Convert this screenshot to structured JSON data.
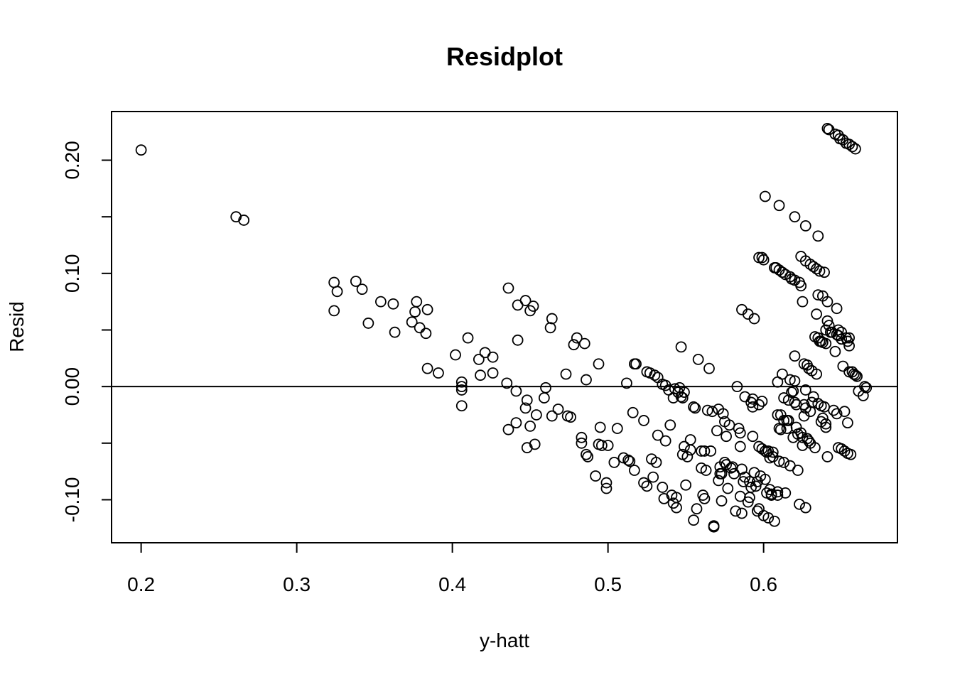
{
  "chart_data": {
    "type": "scatter",
    "title": "Residplot",
    "xlabel": "y-hatt",
    "ylabel": "Resid",
    "xlim": [
      0.181,
      0.686
    ],
    "ylim": [
      -0.138,
      0.243
    ],
    "xticks": [
      0.2,
      0.3,
      0.4,
      0.5,
      0.6
    ],
    "xtick_labels": [
      "0.2",
      "0.3",
      "0.4",
      "0.5",
      "0.6"
    ],
    "yticks": [
      -0.1,
      -0.05,
      0.0,
      0.05,
      0.1,
      0.15,
      0.2
    ],
    "ytick_labels": [
      "-0.10",
      "",
      "0.00",
      "",
      "0.10",
      "",
      "0.20"
    ],
    "hline": 0.0,
    "grid": false,
    "marker": "open-circle",
    "points": [
      [
        0.2,
        0.209
      ],
      [
        0.261,
        0.15
      ],
      [
        0.266,
        0.147
      ],
      [
        0.324,
        0.092
      ],
      [
        0.326,
        0.084
      ],
      [
        0.324,
        0.067
      ],
      [
        0.338,
        0.093
      ],
      [
        0.342,
        0.086
      ],
      [
        0.346,
        0.056
      ],
      [
        0.354,
        0.075
      ],
      [
        0.362,
        0.073
      ],
      [
        0.363,
        0.048
      ],
      [
        0.374,
        0.057
      ],
      [
        0.376,
        0.066
      ],
      [
        0.377,
        0.075
      ],
      [
        0.379,
        0.052
      ],
      [
        0.383,
        0.047
      ],
      [
        0.384,
        0.068
      ],
      [
        0.384,
        0.016
      ],
      [
        0.391,
        0.012
      ],
      [
        0.402,
        0.028
      ],
      [
        0.406,
        0.004
      ],
      [
        0.406,
        0.0
      ],
      [
        0.406,
        -0.003
      ],
      [
        0.406,
        -0.017
      ],
      [
        0.41,
        0.043
      ],
      [
        0.417,
        0.024
      ],
      [
        0.418,
        0.01
      ],
      [
        0.421,
        0.03
      ],
      [
        0.426,
        0.026
      ],
      [
        0.426,
        0.012
      ],
      [
        0.435,
        0.003
      ],
      [
        0.436,
        -0.038
      ],
      [
        0.436,
        0.087
      ],
      [
        0.441,
        -0.032
      ],
      [
        0.441,
        -0.004
      ],
      [
        0.442,
        0.072
      ],
      [
        0.442,
        0.041
      ],
      [
        0.447,
        0.076
      ],
      [
        0.447,
        -0.019
      ],
      [
        0.448,
        -0.054
      ],
      [
        0.448,
        -0.012
      ],
      [
        0.45,
        -0.035
      ],
      [
        0.45,
        0.067
      ],
      [
        0.452,
        0.071
      ],
      [
        0.453,
        -0.051
      ],
      [
        0.454,
        -0.025
      ],
      [
        0.459,
        -0.01
      ],
      [
        0.46,
        -0.001
      ],
      [
        0.463,
        0.052
      ],
      [
        0.464,
        0.06
      ],
      [
        0.464,
        -0.026
      ],
      [
        0.468,
        -0.02
      ],
      [
        0.473,
        0.011
      ],
      [
        0.474,
        -0.026
      ],
      [
        0.476,
        -0.027
      ],
      [
        0.478,
        0.037
      ],
      [
        0.48,
        0.043
      ],
      [
        0.483,
        -0.045
      ],
      [
        0.483,
        -0.05
      ],
      [
        0.485,
        0.038
      ],
      [
        0.486,
        0.006
      ],
      [
        0.486,
        -0.06
      ],
      [
        0.487,
        -0.062
      ],
      [
        0.492,
        -0.079
      ],
      [
        0.494,
        -0.051
      ],
      [
        0.494,
        0.02
      ],
      [
        0.495,
        -0.036
      ],
      [
        0.496,
        -0.052
      ],
      [
        0.499,
        -0.085
      ],
      [
        0.499,
        -0.09
      ],
      [
        0.5,
        -0.052
      ],
      [
        0.504,
        -0.067
      ],
      [
        0.506,
        -0.037
      ],
      [
        0.51,
        -0.063
      ],
      [
        0.512,
        0.003
      ],
      [
        0.513,
        -0.065
      ],
      [
        0.514,
        -0.066
      ],
      [
        0.516,
        -0.023
      ],
      [
        0.517,
        0.02
      ],
      [
        0.517,
        -0.074
      ],
      [
        0.518,
        0.02
      ],
      [
        0.523,
        -0.03
      ],
      [
        0.523,
        -0.085
      ],
      [
        0.525,
        -0.088
      ],
      [
        0.525,
        0.013
      ],
      [
        0.527,
        0.012
      ],
      [
        0.528,
        -0.064
      ],
      [
        0.529,
        -0.08
      ],
      [
        0.53,
        0.01
      ],
      [
        0.531,
        -0.067
      ],
      [
        0.532,
        -0.043
      ],
      [
        0.532,
        0.008
      ],
      [
        0.535,
        0.002
      ],
      [
        0.535,
        -0.089
      ],
      [
        0.536,
        -0.099
      ],
      [
        0.537,
        -0.048
      ],
      [
        0.537,
        0.001
      ],
      [
        0.539,
        -0.003
      ],
      [
        0.54,
        -0.034
      ],
      [
        0.541,
        -0.096
      ],
      [
        0.542,
        -0.01
      ],
      [
        0.542,
        -0.103
      ],
      [
        0.543,
        -0.002
      ],
      [
        0.544,
        -0.107
      ],
      [
        0.544,
        -0.098
      ],
      [
        0.545,
        -0.005
      ],
      [
        0.546,
        -0.001
      ],
      [
        0.547,
        -0.009
      ],
      [
        0.547,
        0.035
      ],
      [
        0.548,
        -0.01
      ],
      [
        0.548,
        -0.06
      ],
      [
        0.549,
        -0.053
      ],
      [
        0.549,
        -0.005
      ],
      [
        0.55,
        -0.087
      ],
      [
        0.551,
        -0.062
      ],
      [
        0.553,
        -0.047
      ],
      [
        0.553,
        -0.056
      ],
      [
        0.555,
        -0.018
      ],
      [
        0.555,
        -0.118
      ],
      [
        0.556,
        -0.019
      ],
      [
        0.557,
        -0.108
      ],
      [
        0.558,
        0.024
      ],
      [
        0.56,
        -0.057
      ],
      [
        0.56,
        -0.072
      ],
      [
        0.561,
        -0.096
      ],
      [
        0.562,
        -0.057
      ],
      [
        0.562,
        -0.099
      ],
      [
        0.563,
        -0.074
      ],
      [
        0.564,
        -0.021
      ],
      [
        0.565,
        0.016
      ],
      [
        0.566,
        -0.057
      ],
      [
        0.567,
        -0.022
      ],
      [
        0.568,
        -0.123
      ],
      [
        0.568,
        -0.124
      ],
      [
        0.57,
        -0.039
      ],
      [
        0.571,
        -0.02
      ],
      [
        0.571,
        -0.083
      ],
      [
        0.572,
        -0.071
      ],
      [
        0.572,
        -0.077
      ],
      [
        0.573,
        -0.077
      ],
      [
        0.573,
        -0.101
      ],
      [
        0.574,
        -0.024
      ],
      [
        0.575,
        -0.067
      ],
      [
        0.575,
        -0.031
      ],
      [
        0.576,
        -0.044
      ],
      [
        0.576,
        -0.069
      ],
      [
        0.577,
        -0.09
      ],
      [
        0.578,
        -0.034
      ],
      [
        0.579,
        -0.072
      ],
      [
        0.58,
        -0.071
      ],
      [
        0.581,
        -0.077
      ],
      [
        0.582,
        -0.11
      ],
      [
        0.583,
        0.0
      ],
      [
        0.584,
        -0.037
      ],
      [
        0.585,
        -0.053
      ],
      [
        0.585,
        -0.041
      ],
      [
        0.585,
        -0.097
      ],
      [
        0.586,
        0.068
      ],
      [
        0.586,
        -0.112
      ],
      [
        0.586,
        -0.073
      ],
      [
        0.587,
        -0.084
      ],
      [
        0.588,
        -0.009
      ],
      [
        0.588,
        -0.08
      ],
      [
        0.59,
        -0.102
      ],
      [
        0.59,
        0.064
      ],
      [
        0.591,
        -0.084
      ],
      [
        0.591,
        -0.098
      ],
      [
        0.592,
        -0.014
      ],
      [
        0.592,
        -0.089
      ],
      [
        0.593,
        -0.044
      ],
      [
        0.593,
        -0.011
      ],
      [
        0.593,
        -0.018
      ],
      [
        0.594,
        0.06
      ],
      [
        0.594,
        -0.076
      ],
      [
        0.595,
        -0.088
      ],
      [
        0.596,
        -0.084
      ],
      [
        0.596,
        -0.11
      ],
      [
        0.597,
        -0.053
      ],
      [
        0.597,
        -0.016
      ],
      [
        0.597,
        -0.108
      ],
      [
        0.597,
        0.114
      ],
      [
        0.598,
        -0.079
      ],
      [
        0.599,
        -0.013
      ],
      [
        0.599,
        0.114
      ],
      [
        0.599,
        -0.055
      ],
      [
        0.6,
        0.112
      ],
      [
        0.6,
        -0.114
      ],
      [
        0.601,
        0.168
      ],
      [
        0.601,
        -0.082
      ],
      [
        0.601,
        -0.057
      ],
      [
        0.602,
        -0.094
      ],
      [
        0.602,
        -0.058
      ],
      [
        0.603,
        -0.116
      ],
      [
        0.603,
        -0.057
      ],
      [
        0.604,
        -0.063
      ],
      [
        0.604,
        -0.091
      ],
      [
        0.605,
        -0.096
      ],
      [
        0.605,
        -0.095
      ],
      [
        0.606,
        -0.058
      ],
      [
        0.606,
        -0.062
      ],
      [
        0.607,
        0.105
      ],
      [
        0.607,
        -0.119
      ],
      [
        0.608,
        0.105
      ],
      [
        0.609,
        -0.093
      ],
      [
        0.609,
        -0.096
      ],
      [
        0.609,
        -0.025
      ],
      [
        0.609,
        0.004
      ],
      [
        0.61,
        -0.066
      ],
      [
        0.61,
        0.16
      ],
      [
        0.61,
        0.103
      ],
      [
        0.61,
        -0.037
      ],
      [
        0.611,
        -0.038
      ],
      [
        0.611,
        -0.025
      ],
      [
        0.612,
        0.011
      ],
      [
        0.612,
        0.101
      ],
      [
        0.613,
        -0.03
      ],
      [
        0.613,
        -0.067
      ],
      [
        0.613,
        -0.01
      ],
      [
        0.614,
        -0.094
      ],
      [
        0.614,
        0.099
      ],
      [
        0.615,
        -0.03
      ],
      [
        0.615,
        -0.037
      ],
      [
        0.616,
        -0.03
      ],
      [
        0.616,
        -0.012
      ],
      [
        0.617,
        0.097
      ],
      [
        0.617,
        0.006
      ],
      [
        0.617,
        -0.07
      ],
      [
        0.618,
        -0.005
      ],
      [
        0.618,
        0.095
      ],
      [
        0.619,
        -0.004
      ],
      [
        0.619,
        -0.045
      ],
      [
        0.62,
        0.15
      ],
      [
        0.62,
        0.027
      ],
      [
        0.62,
        0.094
      ],
      [
        0.62,
        -0.014
      ],
      [
        0.62,
        0.005
      ],
      [
        0.621,
        -0.016
      ],
      [
        0.621,
        -0.036
      ],
      [
        0.622,
        -0.074
      ],
      [
        0.622,
        -0.042
      ],
      [
        0.623,
        0.092
      ],
      [
        0.623,
        -0.104
      ],
      [
        0.624,
        0.115
      ],
      [
        0.624,
        -0.041
      ],
      [
        0.624,
        0.089
      ],
      [
        0.625,
        0.075
      ],
      [
        0.625,
        -0.052
      ],
      [
        0.625,
        -0.045
      ],
      [
        0.626,
        -0.016
      ],
      [
        0.626,
        0.02
      ],
      [
        0.626,
        -0.026
      ],
      [
        0.627,
        0.142
      ],
      [
        0.627,
        0.111
      ],
      [
        0.627,
        -0.107
      ],
      [
        0.627,
        -0.003
      ],
      [
        0.627,
        -0.019
      ],
      [
        0.628,
        0.019
      ],
      [
        0.628,
        -0.046
      ],
      [
        0.629,
        -0.048
      ],
      [
        0.629,
        0.016
      ],
      [
        0.63,
        0.108
      ],
      [
        0.63,
        -0.022
      ],
      [
        0.63,
        -0.05
      ],
      [
        0.631,
        -0.014
      ],
      [
        0.631,
        0.014
      ],
      [
        0.632,
        0.106
      ],
      [
        0.632,
        -0.009
      ],
      [
        0.633,
        0.044
      ],
      [
        0.633,
        -0.054
      ],
      [
        0.634,
        0.011
      ],
      [
        0.634,
        0.064
      ],
      [
        0.634,
        0.104
      ],
      [
        0.635,
        0.043
      ],
      [
        0.635,
        -0.015
      ],
      [
        0.635,
        0.133
      ],
      [
        0.635,
        0.081
      ],
      [
        0.636,
        0.04
      ],
      [
        0.636,
        0.102
      ],
      [
        0.637,
        0.04
      ],
      [
        0.637,
        -0.031
      ],
      [
        0.637,
        -0.017
      ],
      [
        0.638,
        0.08
      ],
      [
        0.638,
        0.039
      ],
      [
        0.638,
        -0.028
      ],
      [
        0.639,
        -0.018
      ],
      [
        0.639,
        0.101
      ],
      [
        0.64,
        0.038
      ],
      [
        0.64,
        0.05
      ],
      [
        0.64,
        -0.033
      ],
      [
        0.64,
        -0.036
      ],
      [
        0.641,
        0.058
      ],
      [
        0.641,
        -0.062
      ],
      [
        0.641,
        0.228
      ],
      [
        0.641,
        0.075
      ],
      [
        0.642,
        0.054
      ],
      [
        0.642,
        0.227
      ],
      [
        0.643,
        0.048
      ],
      [
        0.644,
        0.048
      ],
      [
        0.645,
        -0.021
      ],
      [
        0.646,
        0.031
      ],
      [
        0.646,
        0.223
      ],
      [
        0.647,
        0.046
      ],
      [
        0.647,
        -0.024
      ],
      [
        0.647,
        0.069
      ],
      [
        0.648,
        0.222
      ],
      [
        0.648,
        0.05
      ],
      [
        0.648,
        -0.054
      ],
      [
        0.648,
        0.045
      ],
      [
        0.649,
        0.219
      ],
      [
        0.65,
        -0.055
      ],
      [
        0.65,
        0.048
      ],
      [
        0.65,
        0.042
      ],
      [
        0.651,
        0.018
      ],
      [
        0.651,
        0.218
      ],
      [
        0.652,
        -0.057
      ],
      [
        0.652,
        -0.022
      ],
      [
        0.653,
        0.043
      ],
      [
        0.653,
        0.215
      ],
      [
        0.654,
        -0.059
      ],
      [
        0.654,
        0.04
      ],
      [
        0.654,
        -0.032
      ],
      [
        0.655,
        0.043
      ],
      [
        0.655,
        0.036
      ],
      [
        0.655,
        0.013
      ],
      [
        0.655,
        0.214
      ],
      [
        0.656,
        -0.06
      ],
      [
        0.657,
        0.013
      ],
      [
        0.657,
        0.212
      ],
      [
        0.658,
        0.011
      ],
      [
        0.659,
        0.01
      ],
      [
        0.659,
        0.21
      ],
      [
        0.66,
        0.009
      ],
      [
        0.661,
        -0.004
      ],
      [
        0.664,
        -0.008
      ],
      [
        0.665,
        0.0
      ],
      [
        0.666,
        -0.001
      ]
    ]
  }
}
